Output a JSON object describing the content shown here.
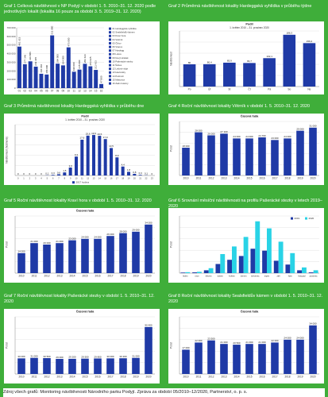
{
  "source": "Zdroj všech grafů: Monitoring návštěvnosti Národního parku Podyjí. Zpráva za období 05/2010–12/2020, Partnerství, o. p. s.",
  "captions": [
    "Graf 1 Celková návštěvnost v NP Podyjí v období 1. 5. 2010–31. 12. 2020 podle jednotlivých lokalit (lokalita 16 pouze za období 3. 5. 2019–31. 12. 2020)",
    "Graf 2 Průměrná návštěvnost lokality Hardeggská vyhlídka v průběhu týdne",
    "Graf 3 Průměrná návštěvnost lokality Hardeggská vyhlídka v průběhu dne",
    "Graf 4 Roční návštěvnost lokality Větrník v období 1. 5. 2010–31. 12. 2020",
    "Graf 5 Roční návštěvnost lokality Kraví hora v období 1. 5. 2010–31. 12. 2020",
    "Graf 6 Srovnání měsíční návštěvnosti na profilu Pašerácké stezky v letech 2019–2020",
    "Graf 7 Roční návštěvnost lokality Pašerácké stezky v období 1. 5. 2010–31. 12. 2020",
    "Graf 8 Roční návštěvnost lokality Sealsfieldův kámen v období 1. 5. 2010–31. 12. 2020"
  ],
  "colors": {
    "page": "#3fae3a",
    "bar": "#1f3aa6",
    "cyan": "#29d3e6",
    "text": "#ffffff"
  },
  "chart_data": [
    {
      "type": "bar",
      "categories": [
        "01",
        "02",
        "03",
        "04",
        "05",
        "06",
        "07",
        "08",
        "09",
        "10",
        "11",
        "12",
        "13",
        "14",
        "15",
        "16"
      ],
      "values": [
        481615,
        277346,
        310886,
        249345,
        166666,
        158000,
        611980,
        284000,
        264000,
        473000,
        190000,
        215000,
        282423,
        253025,
        211423,
        47800
      ],
      "labels": [
        "481 615",
        "277 346",
        "310 886",
        "249 345",
        "166 666",
        "158 000",
        "611 980",
        "284 000",
        "264 000",
        "473 000",
        "190 000",
        "215 000",
        "282 423",
        "253 025",
        "211 423",
        "47 800"
      ],
      "ylim": [
        0,
        700000
      ],
      "yticks": [
        "0",
        "100 000",
        "200 000",
        "300 000",
        "400 000",
        "500 000",
        "600 000",
        "700 000"
      ],
      "legend_position": "right",
      "legend": [
        "01 Hardeggská vyhlídka",
        "02 Sealsfieldův kámen",
        "03 Kraví hora",
        "04 Větrník",
        "05 Čížov",
        "06 Vranov",
        "07 Hardegg",
        "08 Lukov",
        "09 Nový Hrádek",
        "10 Pašerácké stezky",
        "11 Šobes",
        "12 Ledové sluje",
        "13 Havraníky",
        "14 Podmolí",
        "15 Mašovice",
        "16 Zadní Hamry"
      ]
    },
    {
      "type": "bar",
      "title": "Podíl",
      "subtitle": "1. květen 2010 – 31. prosinec 2020",
      "ylabel": "Návštěvnost",
      "categories": [
        "Po",
        "Út",
        "St",
        "Čt",
        "Pá",
        "So",
        "Ne"
      ],
      "values": [
        80,
        80.4,
        85.9,
        84.7,
        102.1,
        186.3,
        156.2
      ],
      "labels": [
        "80",
        "80,4",
        "85,9",
        "84,7",
        "102,1",
        "186,3",
        "156,2"
      ],
      "ylim": [
        0,
        200
      ]
    },
    {
      "type": "bar",
      "title": "Podíl",
      "subtitle": "1. květen 2010 – 31. prosinec 2020",
      "ylabel": "Návštěvnost (hodinová)",
      "legend": [
        "2017 hodina"
      ],
      "categories": [
        "0",
        "1",
        "2",
        "3",
        "4",
        "5",
        "6",
        "7",
        "8",
        "9",
        "10",
        "11",
        "12",
        "13",
        "14",
        "15",
        "16",
        "17",
        "18",
        "19",
        "20",
        "21",
        "22",
        "23"
      ],
      "values": [
        0,
        0,
        0,
        0,
        0,
        0.1,
        0.3,
        0.6,
        1.5,
        3.9,
        9.3,
        17.6,
        19.6,
        19.9,
        19.5,
        17.9,
        13.5,
        8.9,
        4.4,
        1.8,
        0.8,
        0.3,
        0.1,
        0
      ],
      "labels": [
        "0",
        "0",
        "0",
        "0",
        "0",
        "0,1",
        "0,3",
        "0,6",
        "1,5",
        "3,9",
        "9,3",
        "17,6",
        "19,6",
        "19,9",
        "19,5",
        "17,9",
        "13,5",
        "8,9",
        "4,4",
        "1,8",
        "0,8",
        "0,3",
        "0,1",
        "0"
      ],
      "ylim": [
        0,
        25
      ]
    },
    {
      "type": "bar",
      "title": "Časová řada",
      "ylabel": "Počet",
      "categories": [
        "2010",
        "2011",
        "2012",
        "2013",
        "2014",
        "2015",
        "2016",
        "2017",
        "2018",
        "2019",
        "2020"
      ],
      "values": [
        18000,
        28000,
        26000,
        27100,
        24000,
        24000,
        24700,
        23000,
        24000,
        29000,
        31000
      ],
      "labels": [
        "18 000",
        "28 000",
        "26 000",
        "27 100",
        "24 000",
        "24 000",
        "24 700",
        "23 000",
        "24 000",
        "29 000",
        "31 000"
      ],
      "ylim": [
        0,
        35000
      ]
    },
    {
      "type": "bar",
      "title": "Časová řada",
      "ylabel": "Počet",
      "categories": [
        "2010",
        "2011",
        "2012",
        "2013",
        "2014",
        "2015",
        "2016",
        "2017",
        "2018",
        "2019",
        "2020"
      ],
      "values": [
        14000,
        21000,
        20000,
        21000,
        23000,
        24000,
        24000,
        26000,
        28000,
        29000,
        34000
      ],
      "labels": [
        "14 000",
        "21 000",
        "20 000",
        "21 000",
        "23 000",
        "24 000",
        "24 000",
        "26 000",
        "28 000",
        "29 000",
        "34 000"
      ],
      "ylim": [
        0,
        40000
      ]
    },
    {
      "type": "bar",
      "ylabel": "Počet",
      "legend_position": "top-right",
      "categories": [
        "leden",
        "únor",
        "březen",
        "duben",
        "květen",
        "červen",
        "červenec",
        "srpen",
        "září",
        "říjen",
        "listopad",
        "prosinec"
      ],
      "series": [
        {
          "name": "2019",
          "values": [
            300,
            400,
            1500,
            4800,
            7000,
            9000,
            12800,
            11800,
            6500,
            4500,
            1500,
            400
          ]
        },
        {
          "name": "2020",
          "values": [
            500,
            700,
            2600,
            10000,
            14000,
            19000,
            27200,
            23500,
            16500,
            10500,
            3000,
            1500
          ]
        }
      ],
      "ylim": [
        0,
        30000
      ]
    },
    {
      "type": "bar",
      "title": "Časová řada",
      "ylabel": "Počet",
      "categories": [
        "2010",
        "2011",
        "2012",
        "2013",
        "2014",
        "2015",
        "2016",
        "2017",
        "2018",
        "2019",
        "2020"
      ],
      "values": [
        30000,
        31000,
        30500,
        29000,
        29200,
        29500,
        29800,
        30000,
        30200,
        31000,
        90400
      ],
      "labels": [
        "30 000",
        "31 000",
        "30 500",
        "29 000",
        "29 200",
        "29 500",
        "29 800",
        "30 000",
        "30 200",
        "31 000",
        "90 400"
      ],
      "ylim": [
        0,
        110000
      ]
    },
    {
      "type": "bar",
      "title": "Časová řada",
      "ylabel": "Počet",
      "categories": [
        "2010",
        "2011",
        "2012",
        "2013",
        "2014",
        "2015",
        "2016",
        "2017",
        "2018",
        "2019",
        "2020"
      ],
      "values": [
        17000,
        22000,
        23500,
        21000,
        20500,
        21000,
        21000,
        22000,
        24000,
        24000,
        34000
      ],
      "labels": [
        "17 000",
        "22 000",
        "23 500",
        "21 000",
        "20 500",
        "21 000",
        "21 000",
        "22 000",
        "24 000",
        "24 000",
        "34 000"
      ],
      "ylim": [
        0,
        40000
      ]
    }
  ]
}
